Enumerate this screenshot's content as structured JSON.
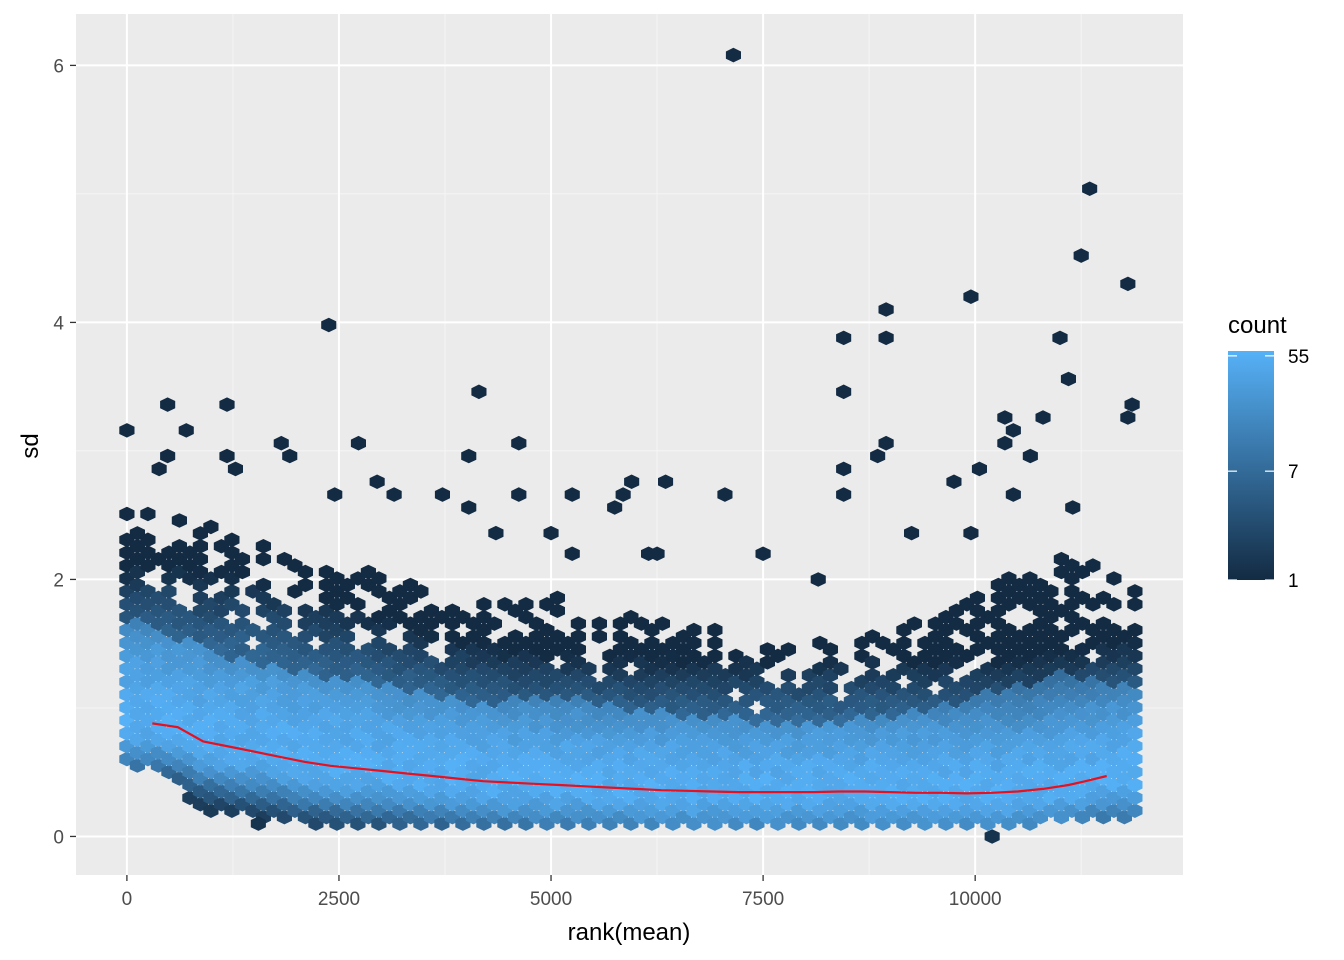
{
  "chart_data": {
    "type": "hexbin",
    "xlabel": "rank(mean)",
    "ylabel": "sd",
    "xlim": [
      -600,
      12450
    ],
    "ylim": [
      -0.3,
      6.4
    ],
    "xticks": [
      0,
      2500,
      5000,
      7500,
      10000
    ],
    "xtick_labels": [
      "0",
      "2500",
      "5000",
      "7500",
      "10000"
    ],
    "yticks": [
      0,
      2,
      4,
      6
    ],
    "ytick_labels": [
      "0",
      "2",
      "4",
      "6"
    ],
    "grid": true,
    "legend": {
      "title": "count",
      "position": "right",
      "scale": "log",
      "range": [
        1,
        60
      ],
      "breaks": [
        1,
        7,
        55
      ],
      "break_labels": [
        "1",
        "7",
        "55"
      ],
      "colors": {
        "low": "#132B43",
        "high": "#56B1F7"
      }
    },
    "trend_line": {
      "color": "#e8101e",
      "x": [
        300,
        600,
        900,
        1200,
        1500,
        1800,
        2100,
        2400,
        2700,
        3000,
        3300,
        3600,
        3900,
        4200,
        4500,
        4800,
        5100,
        5400,
        5700,
        6000,
        6300,
        6600,
        6900,
        7200,
        7500,
        7800,
        8100,
        8400,
        8700,
        9000,
        9300,
        9600,
        9900,
        10200,
        10500,
        10800,
        11100,
        11300,
        11550
      ],
      "y": [
        0.88,
        0.85,
        0.74,
        0.7,
        0.66,
        0.62,
        0.58,
        0.55,
        0.53,
        0.51,
        0.49,
        0.47,
        0.45,
        0.43,
        0.42,
        0.41,
        0.4,
        0.39,
        0.38,
        0.37,
        0.36,
        0.355,
        0.35,
        0.345,
        0.345,
        0.345,
        0.345,
        0.35,
        0.35,
        0.345,
        0.34,
        0.34,
        0.335,
        0.34,
        0.35,
        0.37,
        0.4,
        0.43,
        0.47
      ]
    },
    "outliers": [
      {
        "x": 7150,
        "y": 6.08
      },
      {
        "x": 11350,
        "y": 5.04
      },
      {
        "x": 11250,
        "y": 4.52
      },
      {
        "x": 11800,
        "y": 4.3
      },
      {
        "x": 9950,
        "y": 4.2
      },
      {
        "x": 8950,
        "y": 4.1
      },
      {
        "x": 2380,
        "y": 3.98
      },
      {
        "x": 8450,
        "y": 3.88
      },
      {
        "x": 8950,
        "y": 3.88
      },
      {
        "x": 11000,
        "y": 3.88
      },
      {
        "x": 11100,
        "y": 3.56
      },
      {
        "x": 4150,
        "y": 3.46
      },
      {
        "x": 8450,
        "y": 3.46
      },
      {
        "x": 11850,
        "y": 3.36
      },
      {
        "x": 11800,
        "y": 3.26
      },
      {
        "x": 480,
        "y": 3.36
      },
      {
        "x": 1180,
        "y": 3.36
      },
      {
        "x": 0,
        "y": 3.16
      },
      {
        "x": 700,
        "y": 3.16
      },
      {
        "x": 10350,
        "y": 3.26
      },
      {
        "x": 10800,
        "y": 3.26
      },
      {
        "x": 10450,
        "y": 3.16
      },
      {
        "x": 1820,
        "y": 3.06
      },
      {
        "x": 2730,
        "y": 3.06
      },
      {
        "x": 4620,
        "y": 3.06
      },
      {
        "x": 8950,
        "y": 3.06
      },
      {
        "x": 10350,
        "y": 3.06
      },
      {
        "x": 480,
        "y": 2.96
      },
      {
        "x": 1180,
        "y": 2.96
      },
      {
        "x": 1920,
        "y": 2.96
      },
      {
        "x": 4030,
        "y": 2.96
      },
      {
        "x": 8850,
        "y": 2.96
      },
      {
        "x": 10650,
        "y": 2.96
      },
      {
        "x": 380,
        "y": 2.86
      },
      {
        "x": 1280,
        "y": 2.86
      },
      {
        "x": 8450,
        "y": 2.86
      },
      {
        "x": 10050,
        "y": 2.86
      },
      {
        "x": 2950,
        "y": 2.76
      },
      {
        "x": 5950,
        "y": 2.76
      },
      {
        "x": 6350,
        "y": 2.76
      },
      {
        "x": 9750,
        "y": 2.76
      },
      {
        "x": 2450,
        "y": 2.66
      },
      {
        "x": 3150,
        "y": 2.66
      },
      {
        "x": 3720,
        "y": 2.66
      },
      {
        "x": 4620,
        "y": 2.66
      },
      {
        "x": 5250,
        "y": 2.66
      },
      {
        "x": 5850,
        "y": 2.66
      },
      {
        "x": 7050,
        "y": 2.66
      },
      {
        "x": 8450,
        "y": 2.66
      },
      {
        "x": 10450,
        "y": 2.66
      },
      {
        "x": 4030,
        "y": 2.56
      },
      {
        "x": 5750,
        "y": 2.56
      },
      {
        "x": 11150,
        "y": 2.56
      },
      {
        "x": 4350,
        "y": 2.36
      },
      {
        "x": 5000,
        "y": 2.36
      },
      {
        "x": 9250,
        "y": 2.36
      },
      {
        "x": 9950,
        "y": 2.36
      },
      {
        "x": 7500,
        "y": 2.2
      },
      {
        "x": 5250,
        "y": 2.2
      },
      {
        "x": 6150,
        "y": 2.2
      },
      {
        "x": 6250,
        "y": 2.2
      },
      {
        "x": 8150,
        "y": 2.0
      }
    ],
    "dense_band": [
      {
        "x": 200,
        "y_top": 2.6,
        "y_bottom": 0.55
      },
      {
        "x": 1000,
        "y_top": 2.45,
        "y_bottom": 0.2
      },
      {
        "x": 2000,
        "y_top": 2.2,
        "y_bottom": 0.12
      },
      {
        "x": 3000,
        "y_top": 2.1,
        "y_bottom": 0.1
      },
      {
        "x": 4000,
        "y_top": 1.8,
        "y_bottom": 0.1
      },
      {
        "x": 5000,
        "y_top": 1.9,
        "y_bottom": 0.1
      },
      {
        "x": 6000,
        "y_top": 1.7,
        "y_bottom": 0.1
      },
      {
        "x": 7000,
        "y_top": 1.6,
        "y_bottom": 0.1
      },
      {
        "x": 8000,
        "y_top": 1.5,
        "y_bottom": 0.1
      },
      {
        "x": 9000,
        "y_top": 1.6,
        "y_bottom": 0.1
      },
      {
        "x": 10000,
        "y_top": 1.9,
        "y_bottom": 0.1
      },
      {
        "x": 11000,
        "y_top": 2.2,
        "y_bottom": 0.12
      },
      {
        "x": 11850,
        "y_top": 2.0,
        "y_bottom": 0.15
      }
    ]
  }
}
